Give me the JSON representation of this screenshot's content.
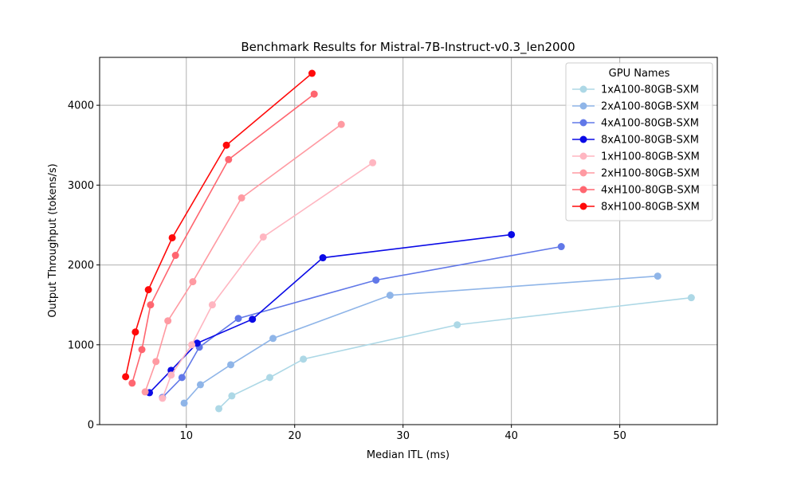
{
  "chart_data": {
    "type": "line",
    "title": "Benchmark Results for Mistral-7B-Instruct-v0.3_len2000",
    "xlabel": "Median ITL (ms)",
    "ylabel": "Output Throughput (tokens/s)",
    "xlim": [
      2,
      59
    ],
    "ylim": [
      0,
      4600
    ],
    "xticks": [
      0,
      10,
      20,
      30,
      40,
      50
    ],
    "yticks": [
      0,
      1000,
      2000,
      3000,
      4000
    ],
    "grid": true,
    "legend": {
      "title": "GPU Names",
      "placement": "top-right"
    },
    "series": [
      {
        "name": "1xA100-80GB-SXM",
        "color": "#add8e6",
        "points": [
          [
            13.0,
            200
          ],
          [
            14.2,
            360
          ],
          [
            17.7,
            590
          ],
          [
            20.8,
            820
          ],
          [
            35.0,
            1250
          ],
          [
            56.6,
            1590
          ]
        ]
      },
      {
        "name": "2xA100-80GB-SXM",
        "color": "#8fb5e8",
        "points": [
          [
            9.8,
            270
          ],
          [
            11.3,
            500
          ],
          [
            14.1,
            750
          ],
          [
            18.0,
            1080
          ],
          [
            28.8,
            1620
          ],
          [
            53.5,
            1860
          ]
        ]
      },
      {
        "name": "4xA100-80GB-SXM",
        "color": "#6178e8",
        "points": [
          [
            7.8,
            340
          ],
          [
            9.6,
            590
          ],
          [
            11.2,
            970
          ],
          [
            14.8,
            1330
          ],
          [
            27.5,
            1810
          ],
          [
            44.6,
            2230
          ]
        ]
      },
      {
        "name": "8xA100-80GB-SXM",
        "color": "#0a0ae6",
        "points": [
          [
            6.6,
            400
          ],
          [
            8.6,
            680
          ],
          [
            11.0,
            1020
          ],
          [
            16.1,
            1320
          ],
          [
            22.6,
            2090
          ],
          [
            40.0,
            2380
          ]
        ]
      },
      {
        "name": "1xH100-80GB-SXM",
        "color": "#ffb6c1",
        "points": [
          [
            7.8,
            330
          ],
          [
            8.6,
            620
          ],
          [
            10.5,
            1000
          ],
          [
            12.4,
            1500
          ],
          [
            17.1,
            2350
          ],
          [
            27.2,
            3280
          ]
        ]
      },
      {
        "name": "2xH100-80GB-SXM",
        "color": "#ff9aa2",
        "points": [
          [
            6.2,
            410
          ],
          [
            7.2,
            790
          ],
          [
            8.3,
            1300
          ],
          [
            10.6,
            1790
          ],
          [
            15.1,
            2840
          ],
          [
            24.3,
            3760
          ]
        ]
      },
      {
        "name": "4xH100-80GB-SXM",
        "color": "#ff6670",
        "points": [
          [
            5.0,
            520
          ],
          [
            5.9,
            940
          ],
          [
            6.7,
            1500
          ],
          [
            9.0,
            2120
          ],
          [
            13.9,
            3320
          ],
          [
            21.8,
            4140
          ]
        ]
      },
      {
        "name": "8xH100-80GB-SXM",
        "color": "#ff0a0a",
        "points": [
          [
            4.4,
            600
          ],
          [
            5.3,
            1160
          ],
          [
            6.5,
            1690
          ],
          [
            8.7,
            2340
          ],
          [
            13.7,
            3500
          ],
          [
            21.6,
            4400
          ]
        ]
      }
    ]
  }
}
